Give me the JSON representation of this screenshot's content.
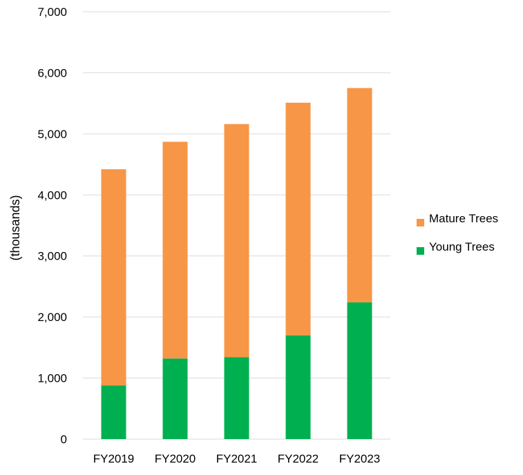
{
  "chart_data": {
    "type": "bar",
    "stacked": true,
    "categories": [
      "FY2019",
      "FY2020",
      "FY2021",
      "FY2022",
      "FY2023"
    ],
    "series": [
      {
        "name": "Young Trees",
        "color": "#00b050",
        "values": [
          880,
          1320,
          1340,
          1700,
          2240
        ]
      },
      {
        "name": "Mature Trees",
        "color": "#f79646",
        "values": [
          3540,
          3550,
          3820,
          3810,
          3510
        ]
      }
    ],
    "ylabel": "(thousands)",
    "ylim": [
      0,
      7000
    ],
    "yticks": [
      0,
      1000,
      2000,
      3000,
      4000,
      5000,
      6000,
      7000
    ],
    "ytick_labels": [
      "0",
      "1,000",
      "2,000",
      "3,000",
      "4,000",
      "5,000",
      "6,000",
      "7,000"
    ],
    "grid": true,
    "gridline_color": "#d9d9d9",
    "legend": {
      "position": "right",
      "entries": [
        "Mature Trees",
        "Young Trees"
      ]
    }
  }
}
